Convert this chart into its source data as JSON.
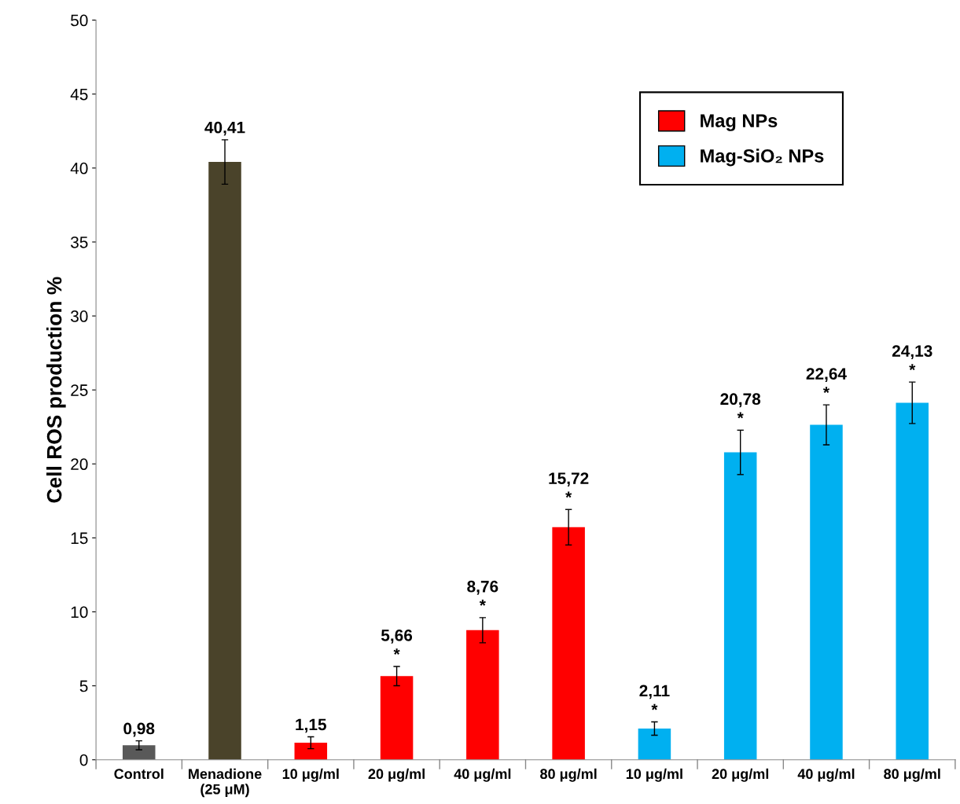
{
  "chart_data": {
    "type": "bar",
    "ylabel": "Cell ROS production %",
    "categories": [
      "Control",
      "Menadione\n(25 μM)",
      "10 μg/ml",
      "20 μg/ml",
      "40 μg/ml",
      "80 μg/ml",
      "10 μg/ml",
      "20 μg/ml",
      "40 μg/ml",
      "80 μg/ml"
    ],
    "series": [
      {
        "colors": [
          "#595959",
          "#4a432a",
          null,
          null,
          null,
          null,
          null,
          null,
          null,
          null
        ],
        "values": [
          0.98,
          40.41,
          null,
          null,
          null,
          null,
          null,
          null,
          null,
          null
        ],
        "errors": [
          0.3,
          1.5,
          null,
          null,
          null,
          null,
          null,
          null,
          null,
          null
        ],
        "value_labels": [
          "0,98",
          "40,41",
          null,
          null,
          null,
          null,
          null,
          null,
          null,
          null
        ]
      },
      {
        "name": "Mag NPs",
        "color": "#ff0000",
        "values": [
          null,
          null,
          1.15,
          5.66,
          8.76,
          15.72,
          null,
          null,
          null,
          null
        ],
        "errors": [
          null,
          null,
          0.4,
          0.65,
          0.85,
          1.2,
          null,
          null,
          null,
          null
        ],
        "value_labels": [
          null,
          null,
          "1,15",
          "5,66\n*",
          "8,76\n*",
          "15,72\n*",
          null,
          null,
          null,
          null
        ]
      },
      {
        "name": "Mag-SiO₂ NPs",
        "color": "#00b0f0",
        "values": [
          null,
          null,
          null,
          null,
          null,
          null,
          2.11,
          20.78,
          22.64,
          24.13
        ],
        "errors": [
          null,
          null,
          null,
          null,
          null,
          null,
          0.45,
          1.5,
          1.35,
          1.4
        ],
        "value_labels": [
          null,
          null,
          null,
          null,
          null,
          null,
          "2,11\n*",
          "20,78\n*",
          "22,64\n*",
          "24,13\n*"
        ]
      }
    ],
    "ylim": [
      0,
      50
    ],
    "yticks": [
      0,
      5,
      10,
      15,
      20,
      25,
      30,
      35,
      40,
      45,
      50
    ],
    "grid": false,
    "legend": "top right"
  }
}
